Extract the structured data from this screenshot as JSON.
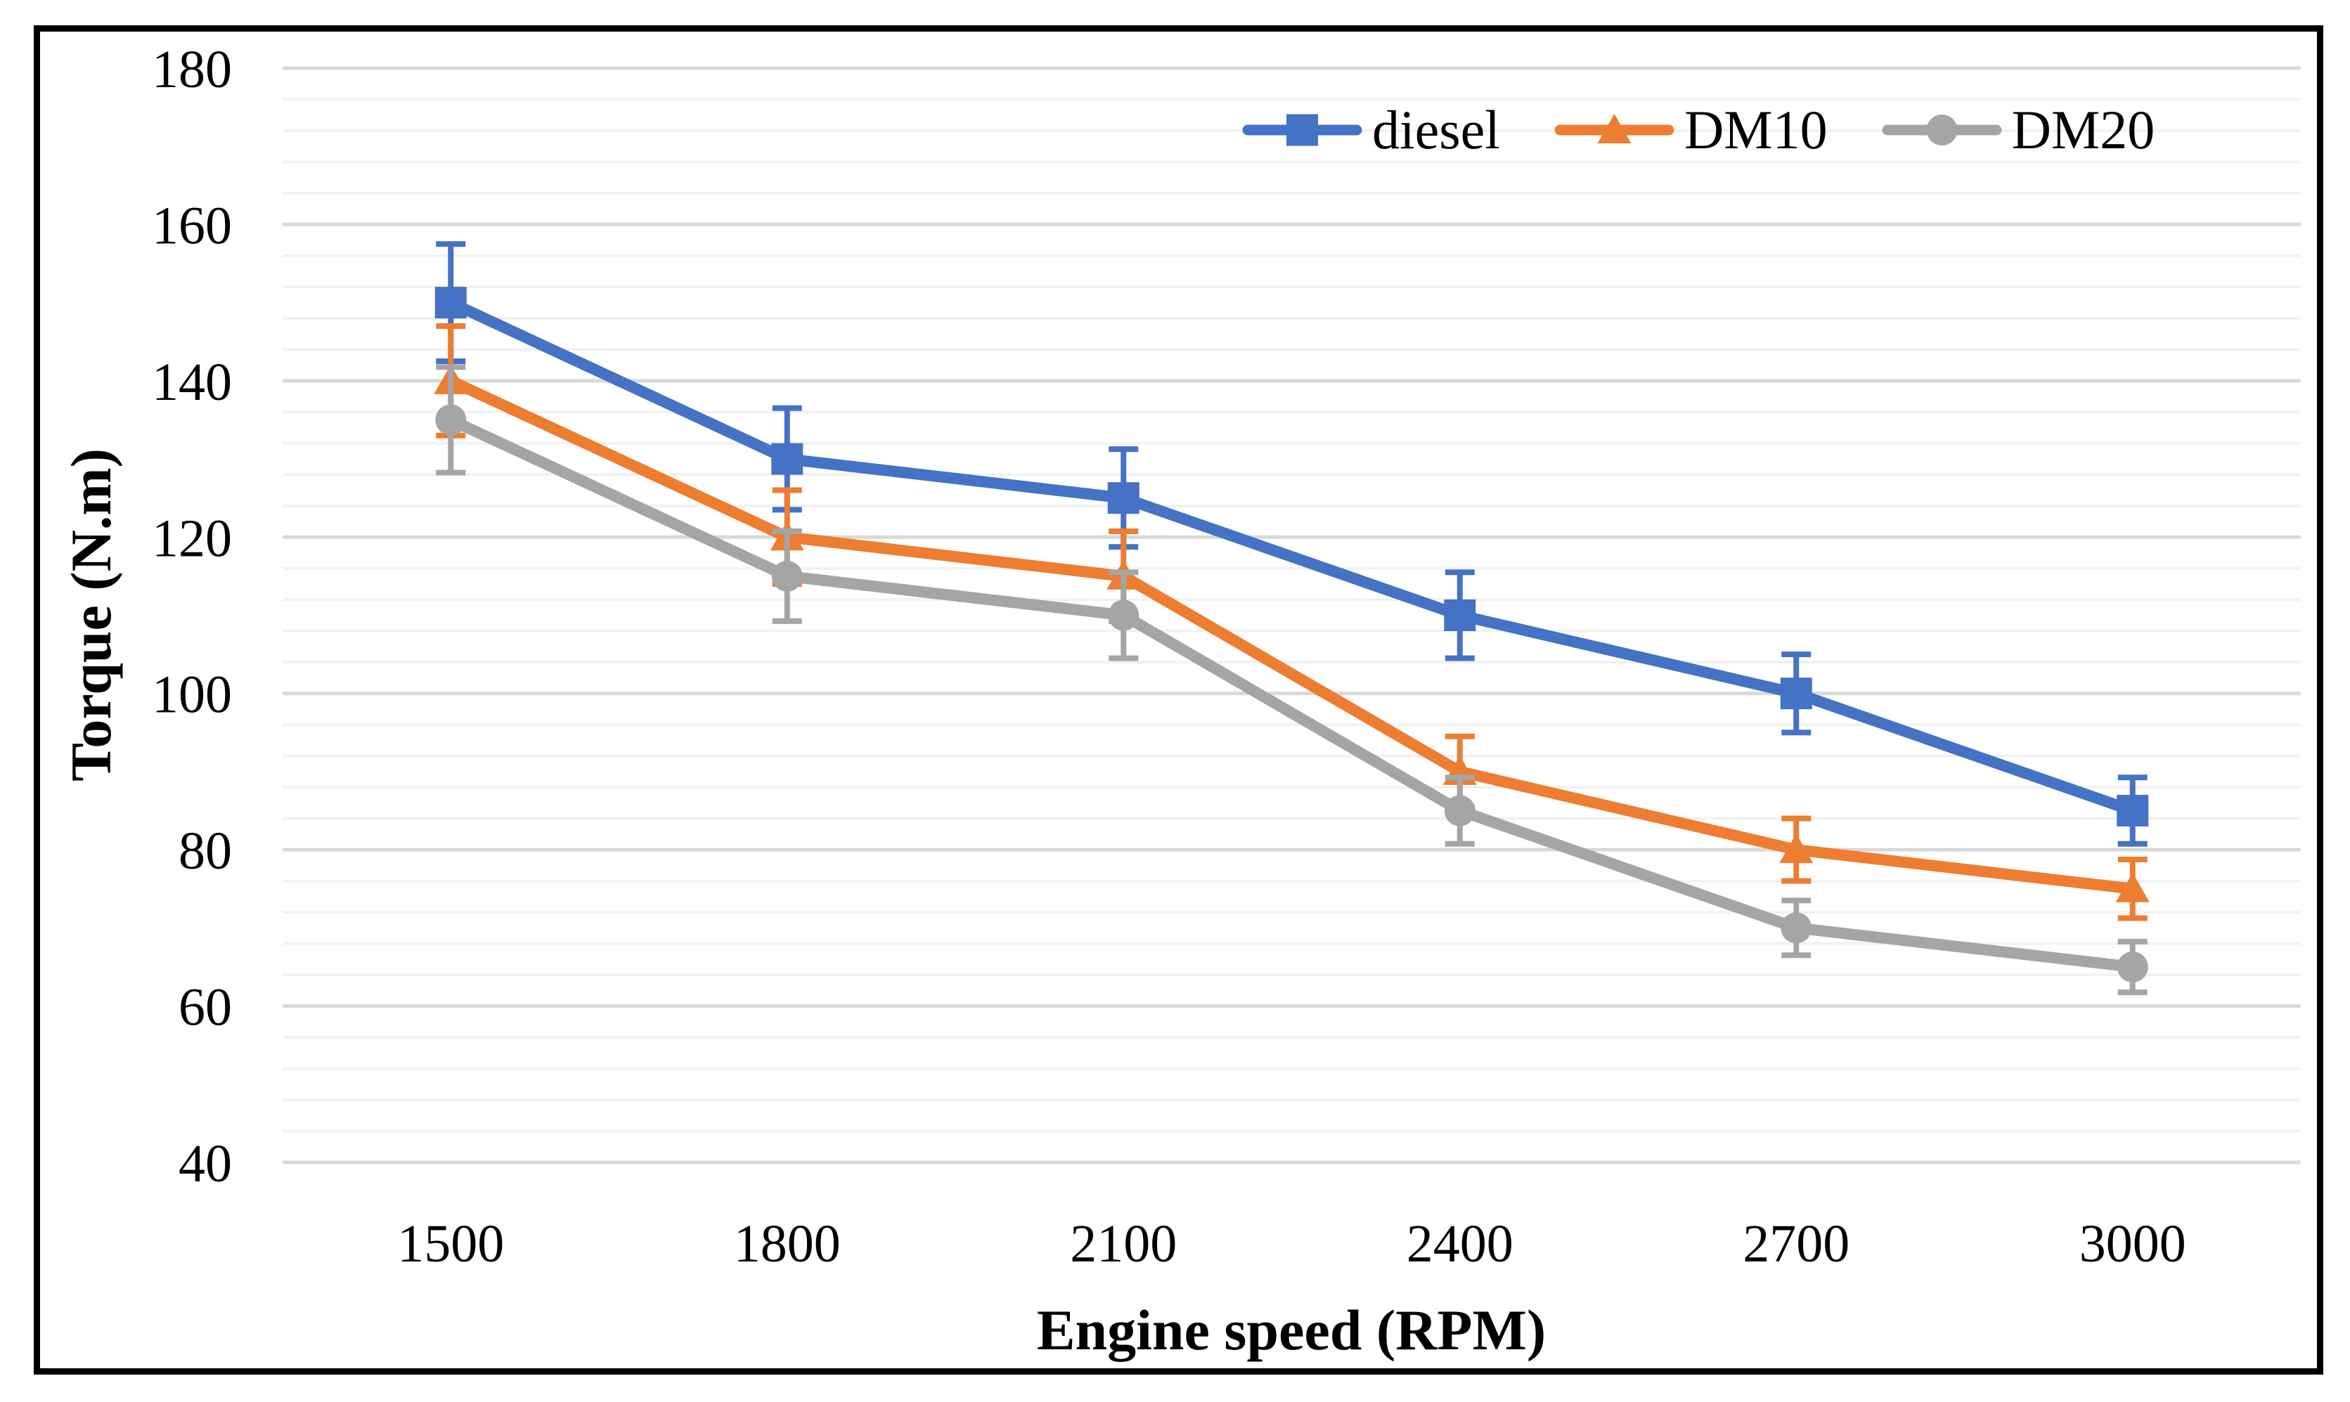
{
  "chart_data": {
    "type": "line",
    "title": "",
    "xlabel": "Engine speed (RPM)",
    "ylabel": "Torque (N.m)",
    "categories": [
      "1500",
      "1800",
      "2100",
      "2400",
      "2700",
      "3000"
    ],
    "y_axis": {
      "min": 40,
      "max": 180,
      "major_unit": 20,
      "minor_unit": 4,
      "ticks": [
        180,
        160,
        140,
        120,
        100,
        80,
        60,
        40
      ]
    },
    "series": [
      {
        "name": "diesel",
        "marker": "square",
        "color": "#4472C4",
        "values": [
          150,
          130,
          125,
          110,
          100,
          85
        ],
        "errors": [
          7.5,
          6.5,
          6.25,
          5.5,
          5.0,
          4.25
        ]
      },
      {
        "name": "DM10",
        "marker": "triangle",
        "color": "#ED7D31",
        "values": [
          140,
          120,
          115,
          90,
          80,
          75
        ],
        "errors": [
          7.0,
          6.0,
          5.75,
          4.5,
          4.0,
          3.75
        ]
      },
      {
        "name": "DM20",
        "marker": "circle",
        "color": "#A5A5A5",
        "values": [
          135,
          115,
          110,
          85,
          70,
          65
        ],
        "errors": [
          6.75,
          5.75,
          5.5,
          4.25,
          3.5,
          3.25
        ]
      }
    ],
    "grid": {
      "major_color": "#D9D9D9",
      "minor_color": "#F2F2F2",
      "show_minor": true
    },
    "legend_position": "inside-top-right",
    "error_bar_rule": "plus-minus 5 percent of value"
  }
}
